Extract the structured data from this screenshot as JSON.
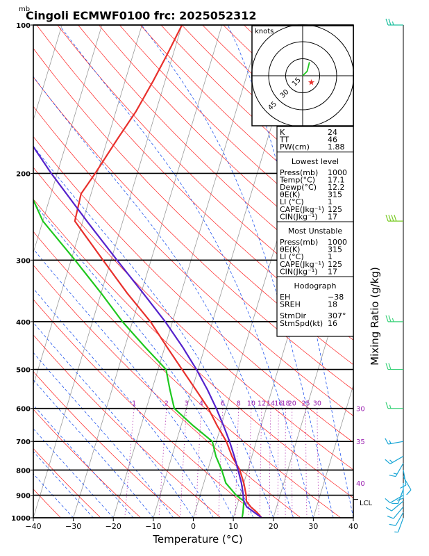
{
  "header": {
    "unit_mb": "mb",
    "title": "Cingoli ECMWF0100  frc: 2025052312"
  },
  "axes": {
    "xlabel": "Temperature (°C)",
    "right_label": "Mixing Ratio (g/kg)",
    "x_ticks": [
      "−40",
      "−30",
      "−20",
      "−10",
      "0",
      "10",
      "20",
      "30",
      "40"
    ],
    "x_values": [
      -40,
      -30,
      -20,
      -10,
      0,
      10,
      20,
      30,
      40
    ],
    "p_ticks": [
      "100",
      "200",
      "300",
      "400",
      "500",
      "600",
      "700",
      "800",
      "900",
      "1000"
    ],
    "p_values": [
      100,
      200,
      300,
      400,
      500,
      600,
      700,
      800,
      900,
      1000
    ],
    "lcl_label": "LCL",
    "lcl_pressure": 918
  },
  "mixing_ratio_labels": [
    "1",
    "2",
    "3",
    "4",
    "6",
    "8",
    "10",
    "12",
    "14",
    "16",
    "18",
    "20",
    "25",
    "30"
  ],
  "mixing_ratio_values": [
    1,
    2,
    3,
    4,
    6,
    8,
    10,
    12,
    14,
    16,
    18,
    20,
    25,
    30
  ],
  "adiabat_labels": [
    {
      "text": "30",
      "pressure": 600
    },
    {
      "text": "35",
      "pressure": 700
    },
    {
      "text": "40",
      "pressure": 850
    }
  ],
  "hodograph": {
    "units": "knots",
    "ring_labels": [
      "15",
      "30",
      "45"
    ],
    "ring_values": [
      15,
      30,
      45
    ]
  },
  "indices": {
    "rows": [
      {
        "label": "K",
        "value": "24"
      },
      {
        "label": "TT",
        "value": "46"
      },
      {
        "label": "PW(cm)",
        "value": "1.88"
      }
    ]
  },
  "lowest_level": {
    "title": "Lowest level",
    "rows": [
      {
        "label": "Press(mb)",
        "value": "1000"
      },
      {
        "label": "Temp(°C)",
        "value": "17.1"
      },
      {
        "label": "Dewp(°C)",
        "value": "12.2"
      },
      {
        "label": "θE(K)",
        "value": "315"
      },
      {
        "label": "LI (°C)",
        "value": "1"
      },
      {
        "label": "CAPE(Jkg⁻¹)",
        "value": "125"
      },
      {
        "label": "CIN(Jkg⁻¹)",
        "value": "17"
      }
    ]
  },
  "most_unstable": {
    "title": "Most Unstable",
    "rows": [
      {
        "label": "Press(mb)",
        "value": "1000"
      },
      {
        "label": "θE(K)",
        "value": "315"
      },
      {
        "label": "LI (°C)",
        "value": "1"
      },
      {
        "label": "CAPE(Jkg⁻¹)",
        "value": "125"
      },
      {
        "label": "CIN(Jkg⁻¹)",
        "value": "17"
      }
    ]
  },
  "hodograph_box": {
    "title": "Hodograph",
    "rows": [
      {
        "label": "EH",
        "value": "−38"
      },
      {
        "label": "SREH",
        "value": "18"
      },
      {
        "label": "StmDir",
        "value": "307°"
      },
      {
        "label": "StmSpd(kt)",
        "value": "16"
      }
    ]
  },
  "chart_data": {
    "type": "line",
    "xlim": [
      -40,
      40
    ],
    "ylim": [
      1000,
      100
    ],
    "log_y": true,
    "series": [
      {
        "color": "#e8302c",
        "pressure": [
          1000,
          975,
          950,
          925,
          900,
          850,
          800,
          750,
          700,
          650,
          600,
          550,
          500,
          450,
          400,
          350,
          300,
          250,
          220,
          200,
          170,
          150,
          130,
          115,
          100
        ],
        "temperature": [
          17.1,
          15.5,
          13.5,
          12.0,
          11.5,
          10.0,
          8.0,
          5.0,
          2.5,
          -1.0,
          -4.5,
          -9.0,
          -14.0,
          -19.5,
          -25.5,
          -33.5,
          -42.0,
          -52.0,
          -52.5,
          -50.5,
          -47.5,
          -45.0,
          -43.0,
          -41.5,
          -40.0
        ]
      },
      {
        "color": "#1fc81f",
        "pressure": [
          1000,
          975,
          950,
          925,
          900,
          850,
          800,
          750,
          700,
          650,
          600,
          550,
          500,
          450,
          400,
          350,
          300,
          250,
          200,
          150,
          100
        ],
        "temperature": [
          12.2,
          12.0,
          11.7,
          11.4,
          9.0,
          5.5,
          3.5,
          1.0,
          -1.0,
          -7.0,
          -13.0,
          -15.5,
          -18.0,
          -25.0,
          -32.5,
          -40.0,
          -49.0,
          -60.0,
          -69.0,
          -81.0,
          -92.0
        ]
      },
      {
        "color": "#5522cc",
        "pressure": [
          1000,
          950,
          918,
          900,
          850,
          800,
          750,
          700,
          650,
          600,
          550,
          500,
          450,
          400,
          350,
          300,
          250,
          200,
          150,
          100
        ],
        "temperature": [
          17.1,
          12.5,
          11.1,
          10.8,
          9.4,
          7.6,
          5.6,
          3.3,
          0.6,
          -2.5,
          -6.1,
          -10.4,
          -15.6,
          -21.8,
          -29.5,
          -38.5,
          -49.0,
          -61.5,
          -76.5,
          -95.0
        ]
      }
    ],
    "hodograph_trace": [
      [
        0,
        0
      ],
      [
        2,
        2
      ],
      [
        4,
        4
      ],
      [
        5,
        8
      ],
      [
        6,
        12
      ]
    ],
    "storm_motion": {
      "direction_deg": 307,
      "speed_kt": 16
    },
    "wind_barbs": [
      {
        "pressure": 1000,
        "dir": 200,
        "spd": 5
      },
      {
        "pressure": 975,
        "dir": 210,
        "spd": 10
      },
      {
        "pressure": 950,
        "dir": 220,
        "spd": 10
      },
      {
        "pressure": 925,
        "dir": 230,
        "spd": 10
      },
      {
        "pressure": 900,
        "dir": 240,
        "spd": 10
      },
      {
        "pressure": 875,
        "dir": 200,
        "spd": 10
      },
      {
        "pressure": 850,
        "dir": 180,
        "spd": 10
      },
      {
        "pressure": 825,
        "dir": 150,
        "spd": 10
      },
      {
        "pressure": 800,
        "dir": 170,
        "spd": 10
      },
      {
        "pressure": 775,
        "dir": 210,
        "spd": 15
      },
      {
        "pressure": 750,
        "dir": 240,
        "spd": 15
      },
      {
        "pressure": 700,
        "dir": 260,
        "spd": 15
      },
      {
        "pressure": 600,
        "dir": 270,
        "spd": 15
      },
      {
        "pressure": 500,
        "dir": 270,
        "spd": 20
      },
      {
        "pressure": 400,
        "dir": 270,
        "spd": 25
      },
      {
        "pressure": 250,
        "dir": 270,
        "spd": 40
      },
      {
        "pressure": 100,
        "dir": 270,
        "spd": 25
      }
    ]
  }
}
